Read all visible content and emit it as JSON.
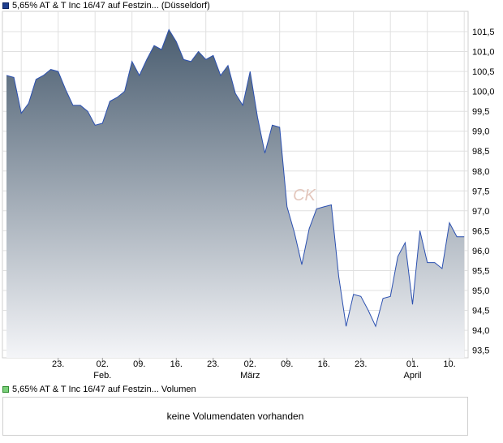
{
  "legend": {
    "price_label": "5,65% AT & T Inc 16/47 auf Festzin... (Düsseldorf)",
    "volume_label": "5,65% AT & T Inc 16/47 auf Festzin... Volumen"
  },
  "volume": {
    "empty_text": "keine Volumendaten vorhanden"
  },
  "colors": {
    "line": "#2b50b0",
    "fill_top": "#4a5d70",
    "fill_bottom": "#f4f5f8",
    "grid": "#e0e0e0"
  },
  "chart_data": {
    "type": "area",
    "watermark": "CK",
    "grid": true,
    "ylim": [
      93.2,
      101.9
    ],
    "y_ticks": [
      "101,5",
      "101,0",
      "100,5",
      "100,0",
      "99,5",
      "99,0",
      "98,5",
      "98,0",
      "97,5",
      "97,0",
      "96,5",
      "96,0",
      "95,5",
      "95,0",
      "94,5",
      "94,0",
      "93,5"
    ],
    "y_tick_values": [
      101.5,
      101.0,
      100.5,
      100.0,
      99.5,
      99.0,
      98.5,
      98.0,
      97.5,
      97.0,
      96.5,
      96.0,
      95.5,
      95.0,
      94.5,
      94.0,
      93.5
    ],
    "x_ticks": [
      {
        "day": "23.",
        "month": "",
        "i": 7
      },
      {
        "day": "02.",
        "month": "Feb.",
        "i": 13
      },
      {
        "day": "09.",
        "month": "",
        "i": 18
      },
      {
        "day": "16.",
        "month": "",
        "i": 23
      },
      {
        "day": "23.",
        "month": "",
        "i": 28
      },
      {
        "day": "02.",
        "month": "März",
        "i": 33
      },
      {
        "day": "09.",
        "month": "",
        "i": 38
      },
      {
        "day": "16.",
        "month": "",
        "i": 43
      },
      {
        "day": "23.",
        "month": "",
        "i": 48
      },
      {
        "day": "01.",
        "month": "April",
        "i": 55
      },
      {
        "day": "10.",
        "month": "",
        "i": 60
      }
    ],
    "series": [
      {
        "values": [
          100.4,
          100.35,
          99.45,
          99.7,
          100.3,
          100.4,
          100.55,
          100.5,
          100.05,
          99.65,
          99.65,
          99.5,
          99.15,
          99.2,
          99.75,
          99.85,
          100.0,
          100.75,
          100.4,
          100.8,
          101.15,
          101.05,
          101.55,
          101.25,
          100.8,
          100.75,
          101.0,
          100.8,
          100.9,
          100.4,
          100.65,
          99.95,
          99.65,
          100.5,
          99.35,
          98.45,
          99.15,
          99.1,
          97.1,
          96.45,
          95.65,
          96.55,
          97.05,
          97.1,
          97.15,
          95.35,
          94.1,
          94.9,
          94.85,
          94.5,
          94.1,
          94.8,
          94.85,
          95.85,
          96.2,
          94.65,
          96.5,
          95.7,
          95.7,
          95.55,
          96.7,
          96.35,
          96.35
        ]
      }
    ]
  }
}
